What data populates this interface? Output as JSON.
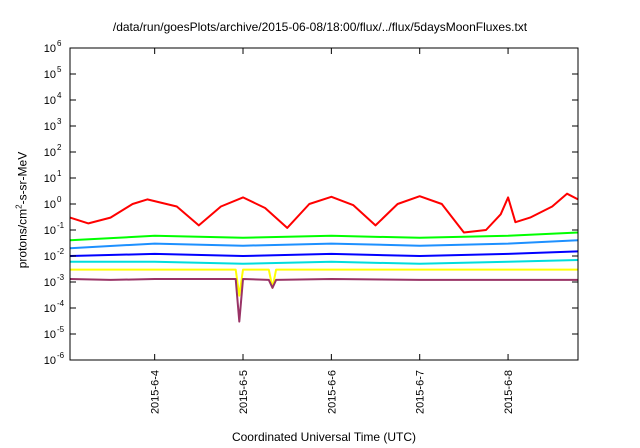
{
  "chart_data": {
    "type": "line",
    "title": "/data/run/goesPlots/archive/2015-06-08/18:00/flux/../flux/5daysMoonFluxes.txt",
    "xlabel": "Coordinated Universal Time (UTC)",
    "ylabel": {
      "prefix": "protons/cm",
      "exp": "2",
      "suffix": "-s-sr-MeV"
    },
    "yscale": "log",
    "ylim": [
      1e-06,
      1000000.0
    ],
    "y_ticks": [
      {
        "base": "10",
        "exp": "-6",
        "value": 1e-06
      },
      {
        "base": "10",
        "exp": "-5",
        "value": 1e-05
      },
      {
        "base": "10",
        "exp": "-4",
        "value": 0.0001
      },
      {
        "base": "10",
        "exp": "-3",
        "value": 0.001
      },
      {
        "base": "10",
        "exp": "-2",
        "value": 0.01
      },
      {
        "base": "10",
        "exp": "-1",
        "value": 0.1
      },
      {
        "base": "10",
        "exp": "0",
        "value": 1
      },
      {
        "base": "10",
        "exp": "1",
        "value": 10
      },
      {
        "base": "10",
        "exp": "2",
        "value": 100
      },
      {
        "base": "10",
        "exp": "3",
        "value": 1000
      },
      {
        "base": "10",
        "exp": "4",
        "value": 10000
      },
      {
        "base": "10",
        "exp": "5",
        "value": 100000
      },
      {
        "base": "10",
        "exp": "6",
        "value": 1000000
      }
    ],
    "xlim": [
      "2015-06-03 01:00",
      "2015-06-08 19:00"
    ],
    "x_ticks": [
      {
        "label": "2015-6-4",
        "date": "2015-06-04 00:00"
      },
      {
        "label": "2015-6-5",
        "date": "2015-06-05 00:00"
      },
      {
        "label": "2015-6-6",
        "date": "2015-06-06 00:00"
      },
      {
        "label": "2015-6-7",
        "date": "2015-06-07 00:00"
      },
      {
        "label": "2015-6-8",
        "date": "2015-06-08 00:00"
      }
    ],
    "grid": false,
    "legend": "none",
    "series": [
      {
        "color": "#ff0000",
        "points": [
          [
            "2015-06-03 01:00",
            0.3
          ],
          [
            "2015-06-03 06:00",
            0.18
          ],
          [
            "2015-06-03 12:00",
            0.3
          ],
          [
            "2015-06-03 18:00",
            1.0
          ],
          [
            "2015-06-03 22:00",
            1.5
          ],
          [
            "2015-06-04 06:00",
            0.8
          ],
          [
            "2015-06-04 12:00",
            0.15
          ],
          [
            "2015-06-04 18:00",
            0.8
          ],
          [
            "2015-06-05 00:00",
            1.8
          ],
          [
            "2015-06-05 06:00",
            0.7
          ],
          [
            "2015-06-05 12:00",
            0.12
          ],
          [
            "2015-06-05 18:00",
            1.0
          ],
          [
            "2015-06-06 00:00",
            1.9
          ],
          [
            "2015-06-06 06:00",
            0.9
          ],
          [
            "2015-06-06 12:00",
            0.15
          ],
          [
            "2015-06-06 18:00",
            1.0
          ],
          [
            "2015-06-07 00:00",
            2.0
          ],
          [
            "2015-06-07 06:00",
            1.0
          ],
          [
            "2015-06-07 12:00",
            0.08
          ],
          [
            "2015-06-07 18:00",
            0.1
          ],
          [
            "2015-06-07 22:00",
            0.4
          ],
          [
            "2015-06-08 00:00",
            1.8
          ],
          [
            "2015-06-08 02:00",
            0.2
          ],
          [
            "2015-06-08 06:00",
            0.3
          ],
          [
            "2015-06-08 12:00",
            0.8
          ],
          [
            "2015-06-08 16:00",
            2.5
          ],
          [
            "2015-06-08 19:00",
            1.5
          ]
        ]
      },
      {
        "color": "#00ff00",
        "points": [
          [
            "2015-06-03 01:00",
            0.04
          ],
          [
            "2015-06-04 00:00",
            0.06
          ],
          [
            "2015-06-05 00:00",
            0.05
          ],
          [
            "2015-06-06 00:00",
            0.06
          ],
          [
            "2015-06-07 00:00",
            0.05
          ],
          [
            "2015-06-08 00:00",
            0.06
          ],
          [
            "2015-06-08 19:00",
            0.08
          ]
        ]
      },
      {
        "color": "#1e90ff",
        "points": [
          [
            "2015-06-03 01:00",
            0.02
          ],
          [
            "2015-06-04 00:00",
            0.03
          ],
          [
            "2015-06-05 00:00",
            0.025
          ],
          [
            "2015-06-06 00:00",
            0.03
          ],
          [
            "2015-06-07 00:00",
            0.025
          ],
          [
            "2015-06-08 00:00",
            0.03
          ],
          [
            "2015-06-08 19:00",
            0.04
          ]
        ]
      },
      {
        "color": "#0000ff",
        "points": [
          [
            "2015-06-03 01:00",
            0.01
          ],
          [
            "2015-06-04 00:00",
            0.012
          ],
          [
            "2015-06-05 00:00",
            0.01
          ],
          [
            "2015-06-06 00:00",
            0.012
          ],
          [
            "2015-06-07 00:00",
            0.01
          ],
          [
            "2015-06-08 00:00",
            0.012
          ],
          [
            "2015-06-08 19:00",
            0.015
          ]
        ]
      },
      {
        "color": "#00dddd",
        "points": [
          [
            "2015-06-03 01:00",
            0.006
          ],
          [
            "2015-06-04 00:00",
            0.006
          ],
          [
            "2015-06-05 00:00",
            0.005
          ],
          [
            "2015-06-06 00:00",
            0.006
          ],
          [
            "2015-06-07 00:00",
            0.005
          ],
          [
            "2015-06-08 00:00",
            0.006
          ],
          [
            "2015-06-08 19:00",
            0.007
          ]
        ]
      },
      {
        "color": "#ffff00",
        "points": [
          [
            "2015-06-03 01:00",
            0.003
          ],
          [
            "2015-06-04 00:00",
            0.003
          ],
          [
            "2015-06-04 22:00",
            0.003
          ],
          [
            "2015-06-04 23:00",
            0.0003
          ],
          [
            "2015-06-05 00:00",
            0.003
          ],
          [
            "2015-06-05 07:00",
            0.003
          ],
          [
            "2015-06-05 08:00",
            0.0006
          ],
          [
            "2015-06-05 09:00",
            0.003
          ],
          [
            "2015-06-06 00:00",
            0.003
          ],
          [
            "2015-06-07 00:00",
            0.003
          ],
          [
            "2015-06-08 00:00",
            0.003
          ],
          [
            "2015-06-08 19:00",
            0.003
          ]
        ]
      },
      {
        "color": "#993366",
        "points": [
          [
            "2015-06-03 01:00",
            0.0013
          ],
          [
            "2015-06-03 12:00",
            0.0012
          ],
          [
            "2015-06-04 00:00",
            0.0013
          ],
          [
            "2015-06-04 22:00",
            0.0013
          ],
          [
            "2015-06-04 23:00",
            3e-05
          ],
          [
            "2015-06-05 00:00",
            0.0013
          ],
          [
            "2015-06-05 07:00",
            0.0012
          ],
          [
            "2015-06-05 08:00",
            0.0006
          ],
          [
            "2015-06-05 09:00",
            0.0012
          ],
          [
            "2015-06-06 00:00",
            0.0013
          ],
          [
            "2015-06-07 00:00",
            0.0012
          ],
          [
            "2015-06-08 00:00",
            0.0012
          ],
          [
            "2015-06-08 19:00",
            0.0012
          ]
        ]
      }
    ]
  }
}
